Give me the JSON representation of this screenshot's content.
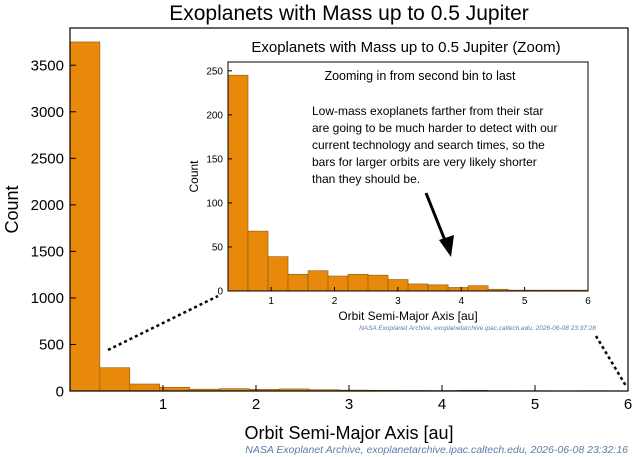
{
  "colors": {
    "bar_fill": "#E8890C",
    "bar_stroke": "#8A5A10",
    "axis": "#000000",
    "source_text": "#5B7EA8",
    "arrow": "#000000"
  },
  "chart_data": [
    {
      "type": "bar",
      "title": "Exoplanets with Mass up to 0.5 Jupiter",
      "xlabel": "Orbit Semi-Major Axis [au]",
      "ylabel": "Count",
      "xlim": [
        0,
        6
      ],
      "ylim": [
        0,
        3900
      ],
      "xticks": [
        1,
        2,
        3,
        4,
        5,
        6
      ],
      "yticks": [
        0,
        500,
        1000,
        1500,
        2000,
        2500,
        3000,
        3500
      ],
      "bin_width": 0.3214,
      "values": [
        3750,
        250,
        75,
        40,
        20,
        25,
        18,
        22,
        14,
        10,
        8,
        6,
        5,
        7,
        4,
        3,
        2,
        3
      ],
      "source": "NASA Exoplanet Archive, exoplanetarchive.ipac.caltech.edu, 2026-06-08 23:32:16"
    },
    {
      "type": "bar",
      "title": "Exoplanets with Mass up to 0.5 Jupiter (Zoom)",
      "xlabel": "Orbit Semi-Major Axis [au]",
      "ylabel": "Count",
      "xlim": [
        0.32,
        6.0
      ],
      "ylim": [
        0,
        260
      ],
      "xticks": [
        1,
        2,
        3,
        4,
        5,
        6
      ],
      "yticks": [
        0,
        50,
        100,
        150,
        200,
        250
      ],
      "bin_width": 0.3157,
      "values": [
        245,
        68,
        39,
        19,
        23,
        17,
        19,
        18,
        13,
        8,
        7,
        4,
        6,
        2,
        1,
        1,
        1,
        1
      ],
      "annotation_title": "Zooming in from second bin to last",
      "annotation_lines": [
        "Low-mass exoplanets farther from their star",
        "are going to be much harder to detect with our",
        "current technology and search times, so the",
        "bars for larger orbits are very likely shorter",
        "than they should be."
      ],
      "source": "NASA Exoplanet Archive, exoplanetarchive.ipac.caltech.edu, 2026-06-08 23:37:28"
    }
  ]
}
